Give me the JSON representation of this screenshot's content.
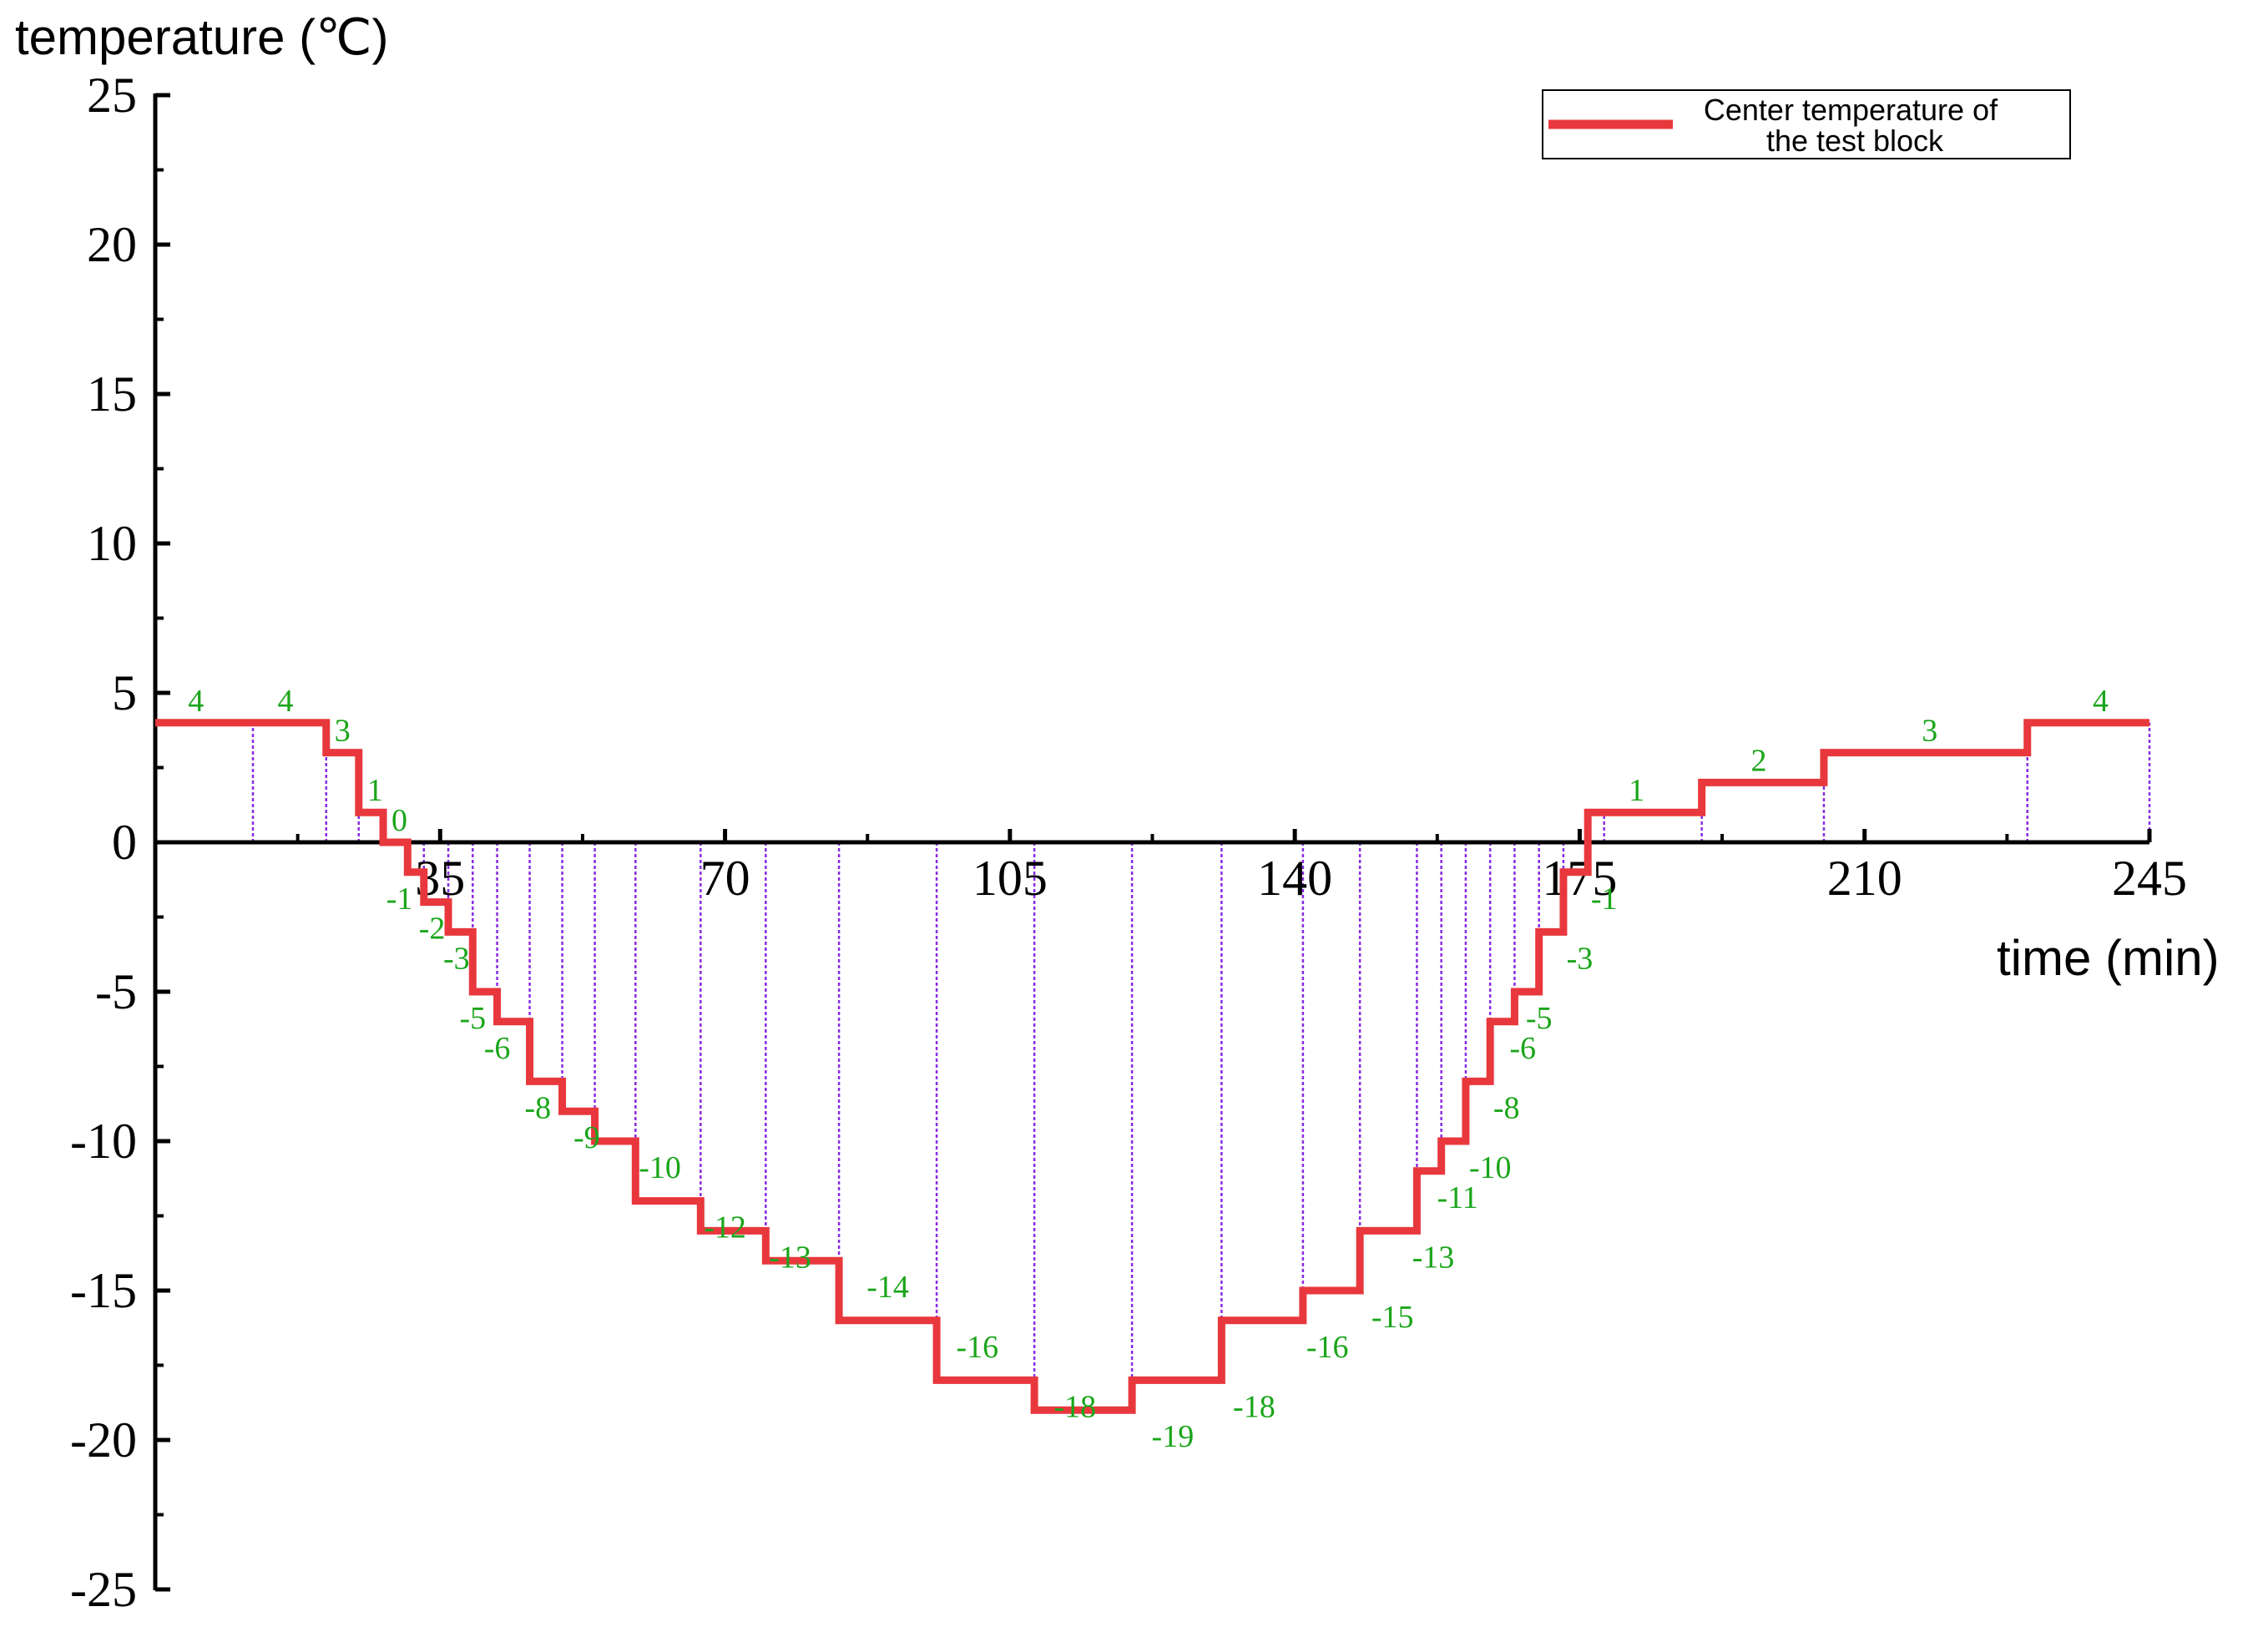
{
  "chart_data": {
    "type": "line",
    "title": "",
    "ylabel": "temperature (℃)",
    "xlabel": "time (min)",
    "xlim": [
      0,
      245
    ],
    "ylim": [
      -25,
      25
    ],
    "x_ticks": [
      35,
      70,
      105,
      140,
      175,
      210,
      245
    ],
    "x_tick_labels": [
      "35",
      "70",
      "105",
      "140",
      "175",
      "210",
      "245"
    ],
    "y_ticks": [
      25,
      20,
      15,
      10,
      5,
      0,
      -5,
      -10,
      -15,
      -20,
      -25
    ],
    "y_tick_labels": [
      "25",
      "20",
      "15",
      "10",
      "5",
      "0",
      "-5",
      "-10",
      "-15",
      "-20",
      "-25"
    ],
    "grid": false,
    "legend_position": "top-right",
    "series": [
      {
        "name": "Center temperature of the test block",
        "color": "#e8383d",
        "step": true,
        "x": [
          0,
          21,
          25,
          28,
          31,
          33,
          36,
          39,
          42,
          46,
          50,
          54,
          59,
          67,
          75,
          84,
          96,
          108,
          120,
          131,
          141,
          148,
          155,
          158,
          161,
          164,
          167,
          170,
          173,
          176,
          178,
          190,
          205,
          230,
          245
        ],
        "y": [
          4,
          3,
          1,
          0,
          -1,
          -2,
          -3,
          -5,
          -6,
          -8,
          -9,
          -10,
          -12,
          -13,
          -14,
          -16,
          -18,
          -19,
          -18,
          -16,
          -15,
          -13,
          -11,
          -10,
          -8,
          -6,
          -5,
          -3,
          -1,
          1,
          1,
          2,
          3,
          4,
          4
        ]
      }
    ],
    "segment_boundaries": [
      0,
      12,
      21,
      25,
      28,
      31,
      33,
      36,
      39,
      42,
      46,
      50,
      54,
      59,
      67,
      75,
      84,
      96,
      108,
      120,
      131,
      141,
      148,
      155,
      158,
      161,
      164,
      167,
      170,
      173,
      176,
      178,
      190,
      205,
      230,
      245
    ],
    "data_labels": [
      {
        "x": 5,
        "y": 4,
        "text": "4"
      },
      {
        "x": 16,
        "y": 4,
        "text": "4"
      },
      {
        "x": 23,
        "y": 3,
        "text": "3"
      },
      {
        "x": 27,
        "y": 1,
        "text": "1"
      },
      {
        "x": 30,
        "y": 0,
        "text": "0"
      },
      {
        "x": 30,
        "y": -1,
        "text": "-1"
      },
      {
        "x": 34,
        "y": -2,
        "text": "-2"
      },
      {
        "x": 37,
        "y": -3,
        "text": "-3"
      },
      {
        "x": 39,
        "y": -5,
        "text": "-5"
      },
      {
        "x": 42,
        "y": -6,
        "text": "-6"
      },
      {
        "x": 47,
        "y": -8,
        "text": "-8"
      },
      {
        "x": 53,
        "y": -9,
        "text": "-9"
      },
      {
        "x": 62,
        "y": -10,
        "text": "-10"
      },
      {
        "x": 70,
        "y": -12,
        "text": "-12"
      },
      {
        "x": 78,
        "y": -13,
        "text": "-13"
      },
      {
        "x": 90,
        "y": -14,
        "text": "-14"
      },
      {
        "x": 101,
        "y": -16,
        "text": "-16"
      },
      {
        "x": 113,
        "y": -18,
        "text": "-18"
      },
      {
        "x": 125,
        "y": -19,
        "text": "-19"
      },
      {
        "x": 135,
        "y": -18,
        "text": "-18"
      },
      {
        "x": 144,
        "y": -16,
        "text": "-16"
      },
      {
        "x": 152,
        "y": -15,
        "text": "-15"
      },
      {
        "x": 157,
        "y": -13,
        "text": "-13"
      },
      {
        "x": 160,
        "y": -11,
        "text": "-11"
      },
      {
        "x": 164,
        "y": -10,
        "text": "-10"
      },
      {
        "x": 166,
        "y": -8,
        "text": "-8"
      },
      {
        "x": 168,
        "y": -6,
        "text": "-6"
      },
      {
        "x": 170,
        "y": -5,
        "text": "-5"
      },
      {
        "x": 175,
        "y": -3,
        "text": "-3"
      },
      {
        "x": 178,
        "y": -1,
        "text": "-1"
      },
      {
        "x": 182,
        "y": 1,
        "text": "1"
      },
      {
        "x": 197,
        "y": 2,
        "text": "2"
      },
      {
        "x": 218,
        "y": 3,
        "text": "3"
      },
      {
        "x": 239,
        "y": 4,
        "text": "4"
      }
    ]
  }
}
